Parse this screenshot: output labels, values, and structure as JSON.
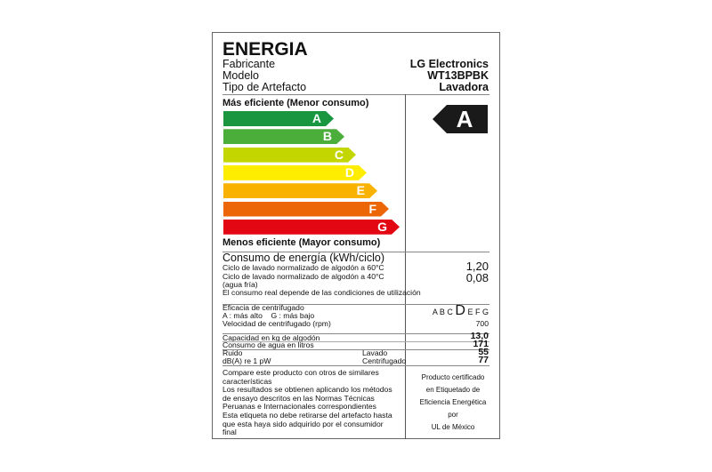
{
  "title": "ENERGIA",
  "info": {
    "labels": [
      "Fabricante",
      "Modelo",
      "Tipo de Artefacto"
    ],
    "values": [
      "LG Electronics",
      "WT13BPBK",
      "Lavadora"
    ]
  },
  "scale": {
    "top_label": "Más eficiente (Menor consumo)",
    "bottom_label": "Menos eficiente (Mayor consumo)",
    "bars": [
      {
        "letter": "A",
        "color": "#1a9641"
      },
      {
        "letter": "B",
        "color": "#4cae3a"
      },
      {
        "letter": "C",
        "color": "#c3d600"
      },
      {
        "letter": "D",
        "color": "#ffed00"
      },
      {
        "letter": "E",
        "color": "#f9b200"
      },
      {
        "letter": "F",
        "color": "#ec6608"
      },
      {
        "letter": "G",
        "color": "#e30613"
      }
    ],
    "rating": "A"
  },
  "consumption": {
    "title": "Consumo de energía (kWh/ciclo)",
    "line1": "Ciclo de lavado normalizado de algodón a 60°C",
    "value1": "1,20",
    "line2": "Ciclo de lavado normalizado de algodón a 40°C",
    "line2b": "(agua fría)",
    "value2": "0,08",
    "note": "El consumo real depende de las condiciones de utilización"
  },
  "spin": {
    "title": "Eficacia de centrifugado",
    "scale_note": "A : más alto    G : más bajo",
    "classes_before": "A B C",
    "class_selected": "D",
    "classes_after": "E F G",
    "speed_label": "Velocidad de centrifugado (rpm)",
    "speed": "700"
  },
  "specs": {
    "capacity_label": "Capacidad en kg de algodón",
    "capacity": "13,0",
    "water_label": "Consumo de agua en litros",
    "water": "171",
    "noise_label": "Ruido",
    "noise_unit": "dB(A) re 1 pW",
    "wash_label": "Lavado",
    "wash": "55",
    "spin_label": "Centrifugado",
    "spin": "77"
  },
  "footer": {
    "left": [
      "Compare este producto con otros de similares",
      "características",
      "Los resultados se obtienen aplicando los métodos",
      "de ensayo descritos en las Normas Técnicas",
      "Peruanas e Internacionales correspondientes",
      "Esta etiqueta no debe retirarse del artefacto hasta",
      "que esta haya sido adquirido por el consumidor",
      "final"
    ],
    "right": [
      "Producto certificado",
      "en Etiquetado de",
      "Eficiencia Energética",
      "por",
      "UL de México"
    ]
  }
}
